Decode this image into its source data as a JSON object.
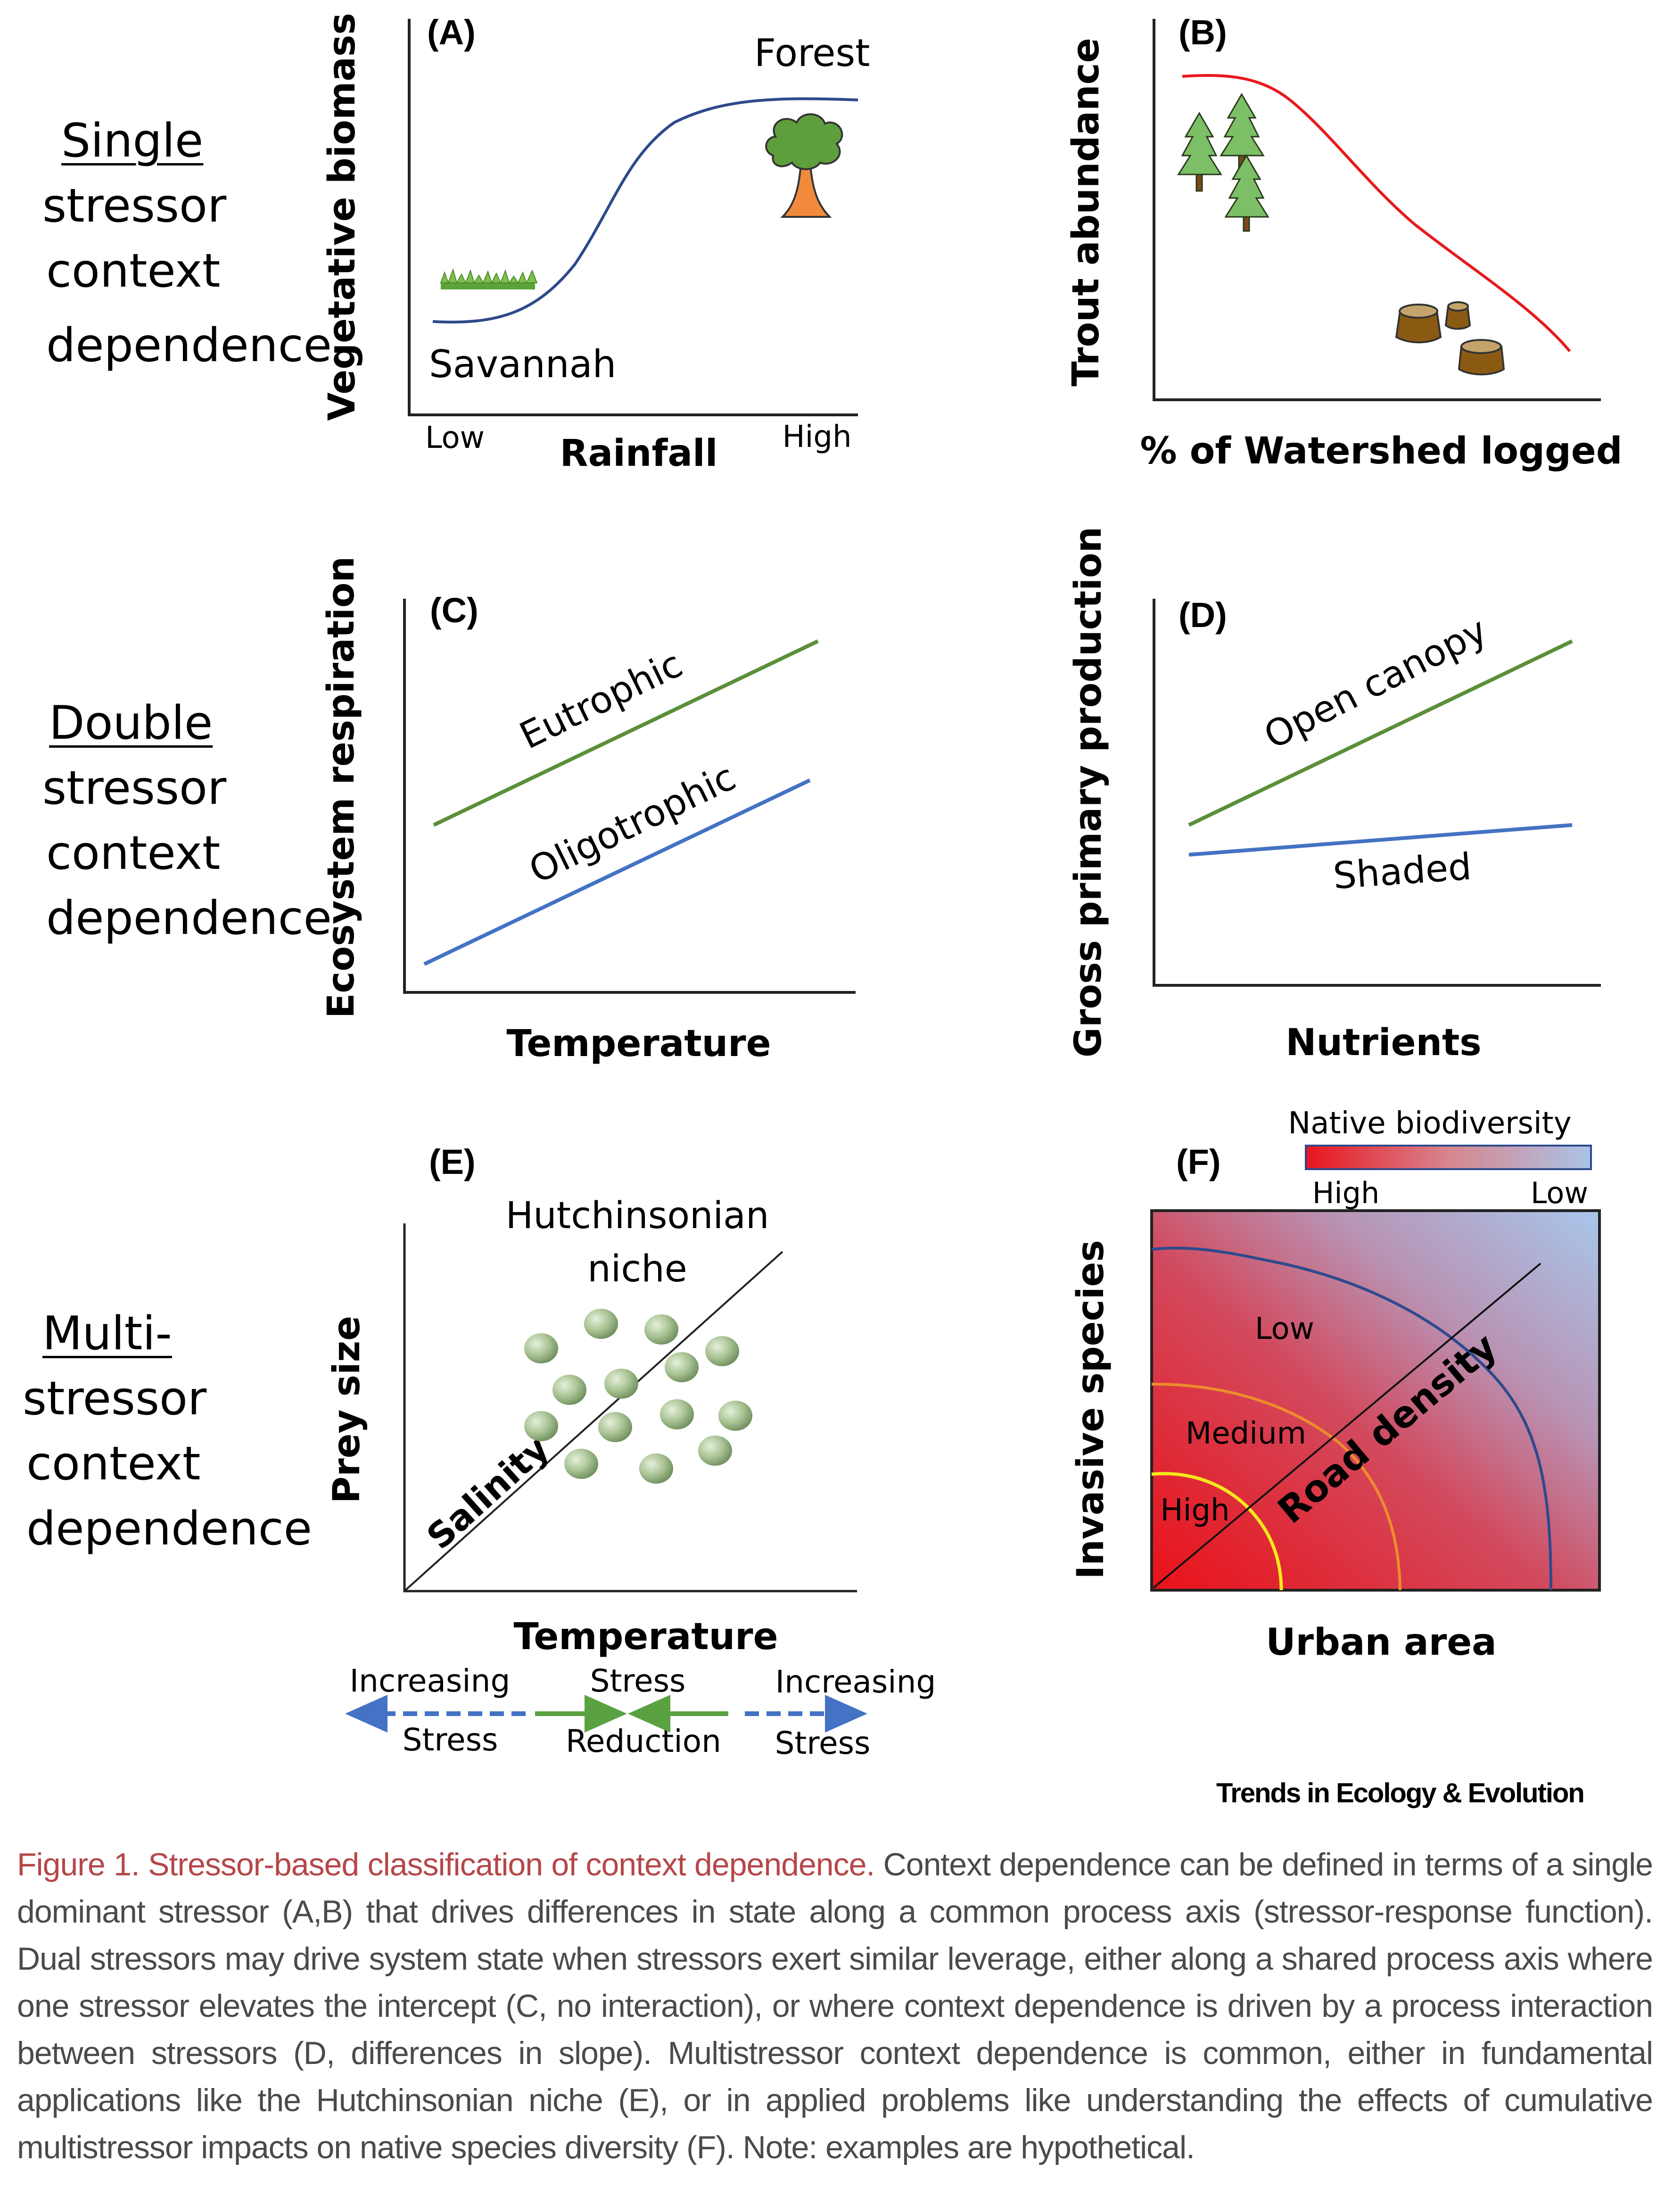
{
  "rows": {
    "single": {
      "title": "Single",
      "lines": [
        "stressor",
        "context",
        "dependence"
      ]
    },
    "double": {
      "title": "Double",
      "lines": [
        "stressor",
        "context",
        "dependence"
      ]
    },
    "multi": {
      "title": "Multi-",
      "lines": [
        "stressor",
        "context",
        "dependence"
      ]
    }
  },
  "panels": {
    "A": {
      "label": "(A)",
      "ylabel": "Vegetative biomass",
      "xlabel": "Rainfall",
      "x_low": "Low",
      "x_high": "High",
      "curve_low_label": "Savannah",
      "curve_high_label": "Forest",
      "line_color": "#2e4a8c"
    },
    "B": {
      "label": "(B)",
      "ylabel": "Trout abundance",
      "xlabel": "% of Watershed logged",
      "line_color": "#e8191b"
    },
    "C": {
      "label": "(C)",
      "ylabel": "Ecosystem respiration",
      "xlabel": "Temperature",
      "line1_label": "Eutrophic",
      "line2_label": "Oligotrophic",
      "line1_color": "#5b8f3a",
      "line2_color": "#4472c4"
    },
    "D": {
      "label": "(D)",
      "ylabel": "Gross primary production",
      "xlabel": "Nutrients",
      "line1_label": "Open canopy",
      "line2_label": "Shaded",
      "line1_color": "#5b8f3a",
      "line2_color": "#4472c4"
    },
    "E": {
      "label": "(E)",
      "ylabel": "Prey size",
      "xlabel": "Temperature",
      "diag_label": "Salinity",
      "niche_label_1": "Hutchinsonian",
      "niche_label_2": "niche",
      "legend": {
        "left_1": "Increasing",
        "left_2": "Stress",
        "mid_1": "Stress",
        "mid_2": "Reduction",
        "right_1": "Increasing",
        "right_2": "Stress"
      }
    },
    "F": {
      "label": "(F)",
      "ylabel": "Invasive species",
      "xlabel": "Urban area",
      "diag_label": "Road density",
      "colorbar_title": "Native biodiversity",
      "colorbar_high": "High",
      "colorbar_low": "Low",
      "contour_low": "Low",
      "contour_medium": "Medium",
      "contour_high": "High",
      "colors": {
        "high": "#e8141c",
        "low": "#a9c4e6",
        "contour_low": "#2e4a8c",
        "contour_medium": "#ec8c2c",
        "contour_high": "#f4e81c"
      }
    }
  },
  "source": "Trends in Ecology & Evolution",
  "caption": {
    "title": "Figure 1. Stressor-based classification of context dependence.",
    "body": " Context dependence can be defined in terms of a single dominant stressor (A,B) that drives differences in state along a common process axis (stressor-response function). Dual stressors may drive system state when stressors exert similar leverage, either along a shared process axis where one stressor elevates the intercept (C, no interaction), or where context dependence is driven by a process interaction between stressors (D, differences in slope). Multistressor context dependence is common, either in fundamental applications like the Hutchinsonian niche (E), or in applied problems like understanding the effects of cumulative multistressor impacts on native species diversity (F). Note: examples are hypothetical."
  }
}
